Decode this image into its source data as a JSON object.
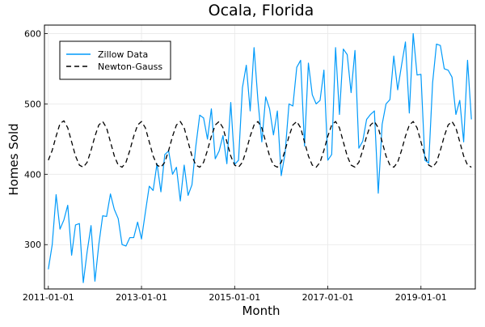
{
  "chart_data": {
    "type": "line",
    "title": "Ocala, Florida",
    "xlabel": "Month",
    "ylabel": "Homes Sold",
    "x_start": "2011-01",
    "x_step": "1 month",
    "xlim": [
      "2010-12",
      "2020-03"
    ],
    "ylim": [
      237,
      612
    ],
    "x_ticks": [
      "2011-01-01",
      "2013-01-01",
      "2015-01-01",
      "2017-01-01",
      "2019-01-01"
    ],
    "y_ticks": [
      300,
      400,
      500,
      600
    ],
    "grid": true,
    "legend": "top-left",
    "series": [
      {
        "name": "Zillow Data",
        "color": "#009AFA",
        "dash": "solid",
        "values": [
          265,
          300,
          371,
          322,
          335,
          356,
          285,
          328,
          330,
          246,
          290,
          327,
          248,
          300,
          341,
          340,
          372,
          350,
          337,
          300,
          298,
          310,
          310,
          332,
          308,
          346,
          383,
          377,
          415,
          375,
          428,
          433,
          400,
          410,
          362,
          413,
          370,
          385,
          440,
          484,
          480,
          450,
          493,
          422,
          433,
          455,
          415,
          502,
          414,
          420,
          523,
          555,
          490,
          580,
          505,
          446,
          510,
          493,
          456,
          490,
          398,
          430,
          500,
          497,
          552,
          562,
          440,
          558,
          513,
          500,
          505,
          548,
          420,
          428,
          580,
          485,
          578,
          570,
          516,
          576,
          437,
          447,
          478,
          485,
          490,
          373,
          471,
          500,
          506,
          568,
          520,
          555,
          588,
          487,
          600,
          541,
          542,
          420,
          416,
          530,
          585,
          583,
          550,
          548,
          538,
          485,
          505,
          446,
          562,
          478
        ]
      },
      {
        "name": "Newton-Gauss",
        "color": "#000000",
        "dash": "dashed",
        "values": [
          420,
          434,
          454,
          472,
          476,
          466,
          446,
          426,
          413,
          410,
          417,
          434,
          454,
          470,
          475,
          466,
          446,
          426,
          413,
          410,
          417,
          434,
          454,
          470,
          475,
          466,
          446,
          426,
          413,
          410,
          417,
          434,
          454,
          470,
          475,
          466,
          446,
          426,
          413,
          410,
          417,
          434,
          454,
          470,
          475,
          466,
          446,
          426,
          413,
          410,
          417,
          434,
          454,
          470,
          475,
          466,
          446,
          426,
          413,
          410,
          417,
          434,
          454,
          470,
          475,
          466,
          446,
          426,
          413,
          410,
          417,
          434,
          454,
          470,
          475,
          466,
          446,
          426,
          413,
          410,
          417,
          434,
          454,
          470,
          475,
          466,
          446,
          426,
          413,
          410,
          417,
          434,
          454,
          470,
          475,
          466,
          446,
          426,
          413,
          410,
          417,
          434,
          454,
          470,
          475,
          466,
          446,
          426,
          413,
          410
        ]
      }
    ]
  }
}
